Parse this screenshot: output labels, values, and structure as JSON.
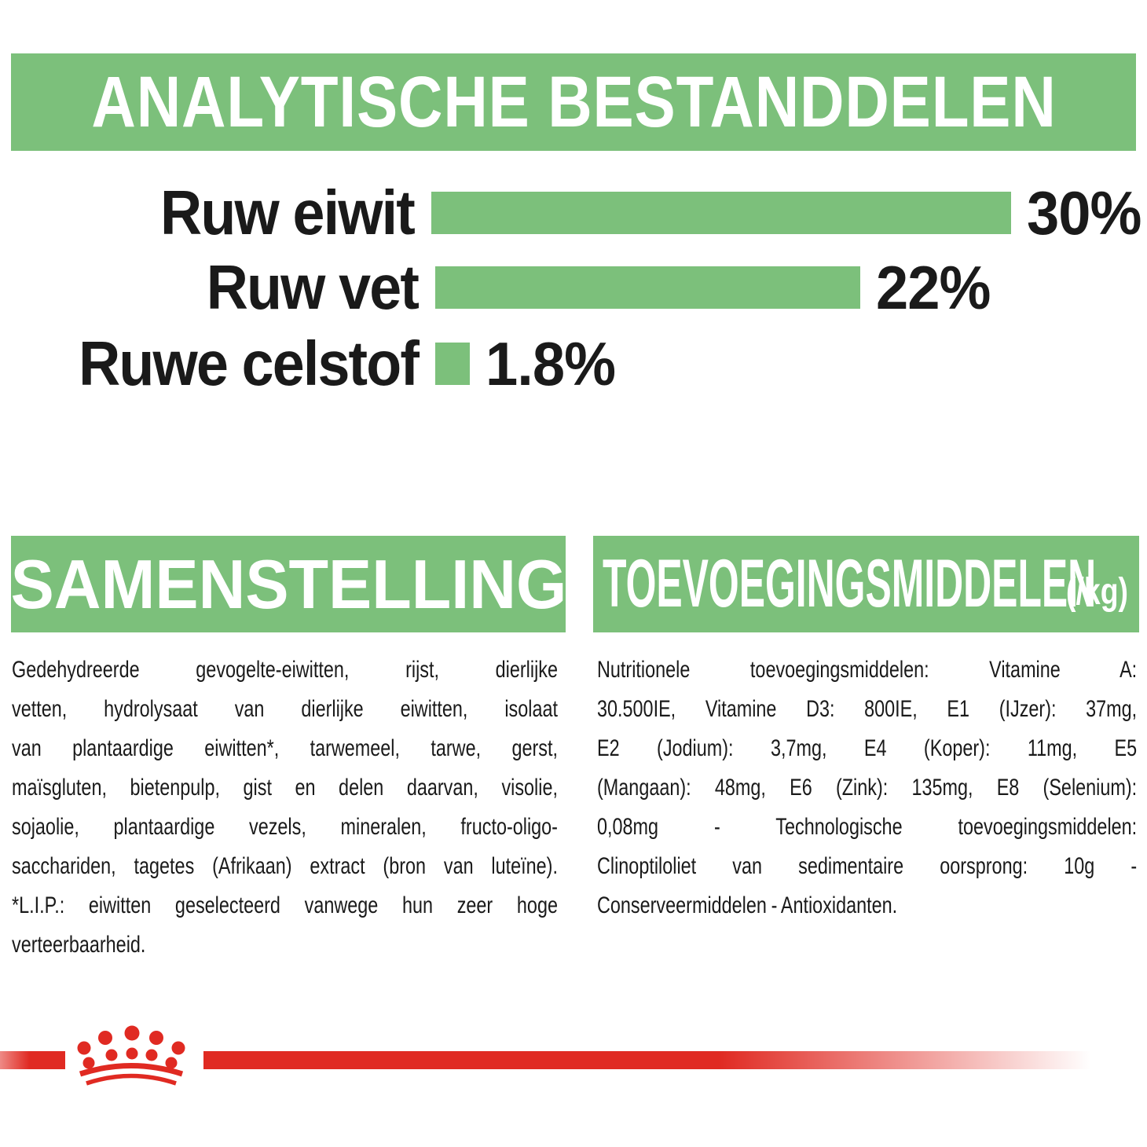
{
  "header": {
    "title": "ANALYTISCHE BESTANDDELEN"
  },
  "chart_data": {
    "type": "bar",
    "orientation": "horizontal",
    "title": "ANALYTISCHE BESTANDDELEN",
    "categories": [
      "Ruw eiwit",
      "Ruw vet",
      "Ruwe celstof"
    ],
    "values": [
      30,
      22,
      1.8
    ],
    "value_labels": [
      "30%",
      "22%",
      "1.8%"
    ],
    "xlim": [
      0,
      30
    ],
    "grid": false,
    "legend": false,
    "bar_color": "#7cc07b"
  },
  "samenstelling": {
    "title": "SAMENSTELLING",
    "lines": [
      "Gedehydreerde gevogelte-eiwitten, rijst, dierlijke",
      "vetten, hydrolysaat van dierlijke eiwitten, isolaat",
      "van plantaardige eiwitten*, tarwemeel, tarwe, gerst,",
      "maïsgluten, bietenpulp, gist en delen daarvan, visolie,",
      "sojaolie, plantaardige vezels, mineralen, fructo-oligo-",
      "sacchariden, tagetes (Afrikaan) extract (bron van luteïne).",
      "*L.I.P.: eiwitten geselecteerd vanwege hun zeer hoge",
      "verteerbaarheid."
    ]
  },
  "toevoegingsmiddelen": {
    "title": "TOEVOEGINGSMIDDELEN",
    "unit": "(/kg)",
    "lines": [
      "Nutritionele toevoegingsmiddelen: Vitamine A:",
      "30.500IE, Vitamine D3: 800IE, E1 (IJzer): 37mg,",
      "E2 (Jodium): 3,7mg, E4 (Koper): 11mg, E5",
      "(Mangaan): 48mg, E6 (Zink): 135mg, E8 (Selenium):",
      "0,08mg - Technologische toevoegingsmiddelen:",
      "Clinoptiloliet van sedimentaire oorsprong: 10g -",
      "Conserveermiddelen - Antioxidanten."
    ]
  },
  "colors": {
    "green": "#7cc07b",
    "red": "#e02a22",
    "text": "#1a1a1a"
  },
  "footer": {
    "brand_logo": "royal-canin-crown"
  }
}
